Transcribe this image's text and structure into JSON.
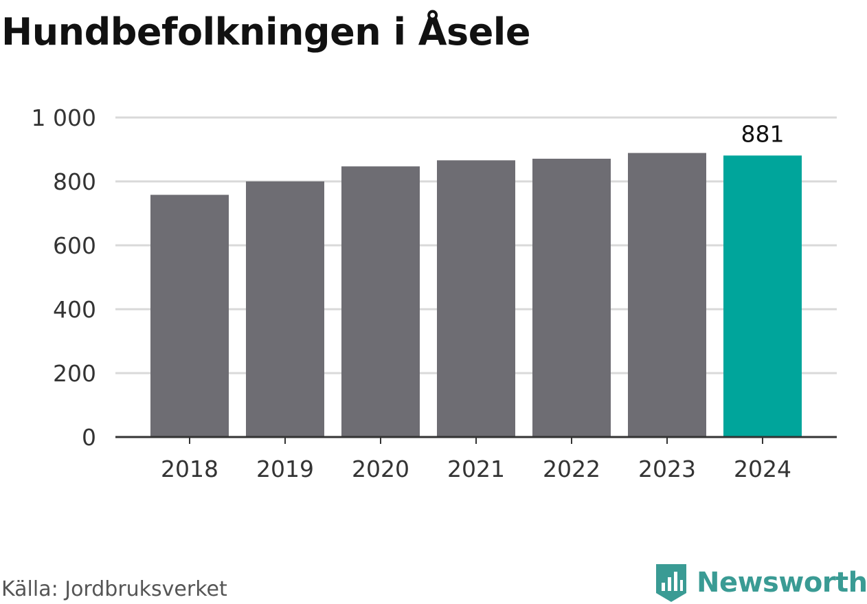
{
  "title": "Hundbefolkningen i Åsele",
  "source": "Källa: Jordbruksverket",
  "brand": {
    "name": "Newsworthy",
    "color": "#3a9b94",
    "icon": "bar-chart-badge-icon"
  },
  "colors": {
    "bar": "#6e6d73",
    "highlight": "#00a59b",
    "grid": "#d9d9d9",
    "axis": "#333333"
  },
  "chart_data": {
    "type": "bar",
    "categories": [
      "2018",
      "2019",
      "2020",
      "2021",
      "2022",
      "2023",
      "2024"
    ],
    "values": [
      758,
      800,
      847,
      866,
      871,
      889,
      881
    ],
    "ylim": [
      0,
      1000
    ],
    "yticks": [
      0,
      200,
      400,
      600,
      800,
      1000
    ],
    "ytick_labels": [
      "0",
      "200",
      "400",
      "600",
      "800",
      "1 000"
    ],
    "highlight_index": 6,
    "data_labels": [
      {
        "index": 6,
        "text": "881"
      }
    ],
    "grid": true,
    "xlabel": "",
    "ylabel": ""
  }
}
